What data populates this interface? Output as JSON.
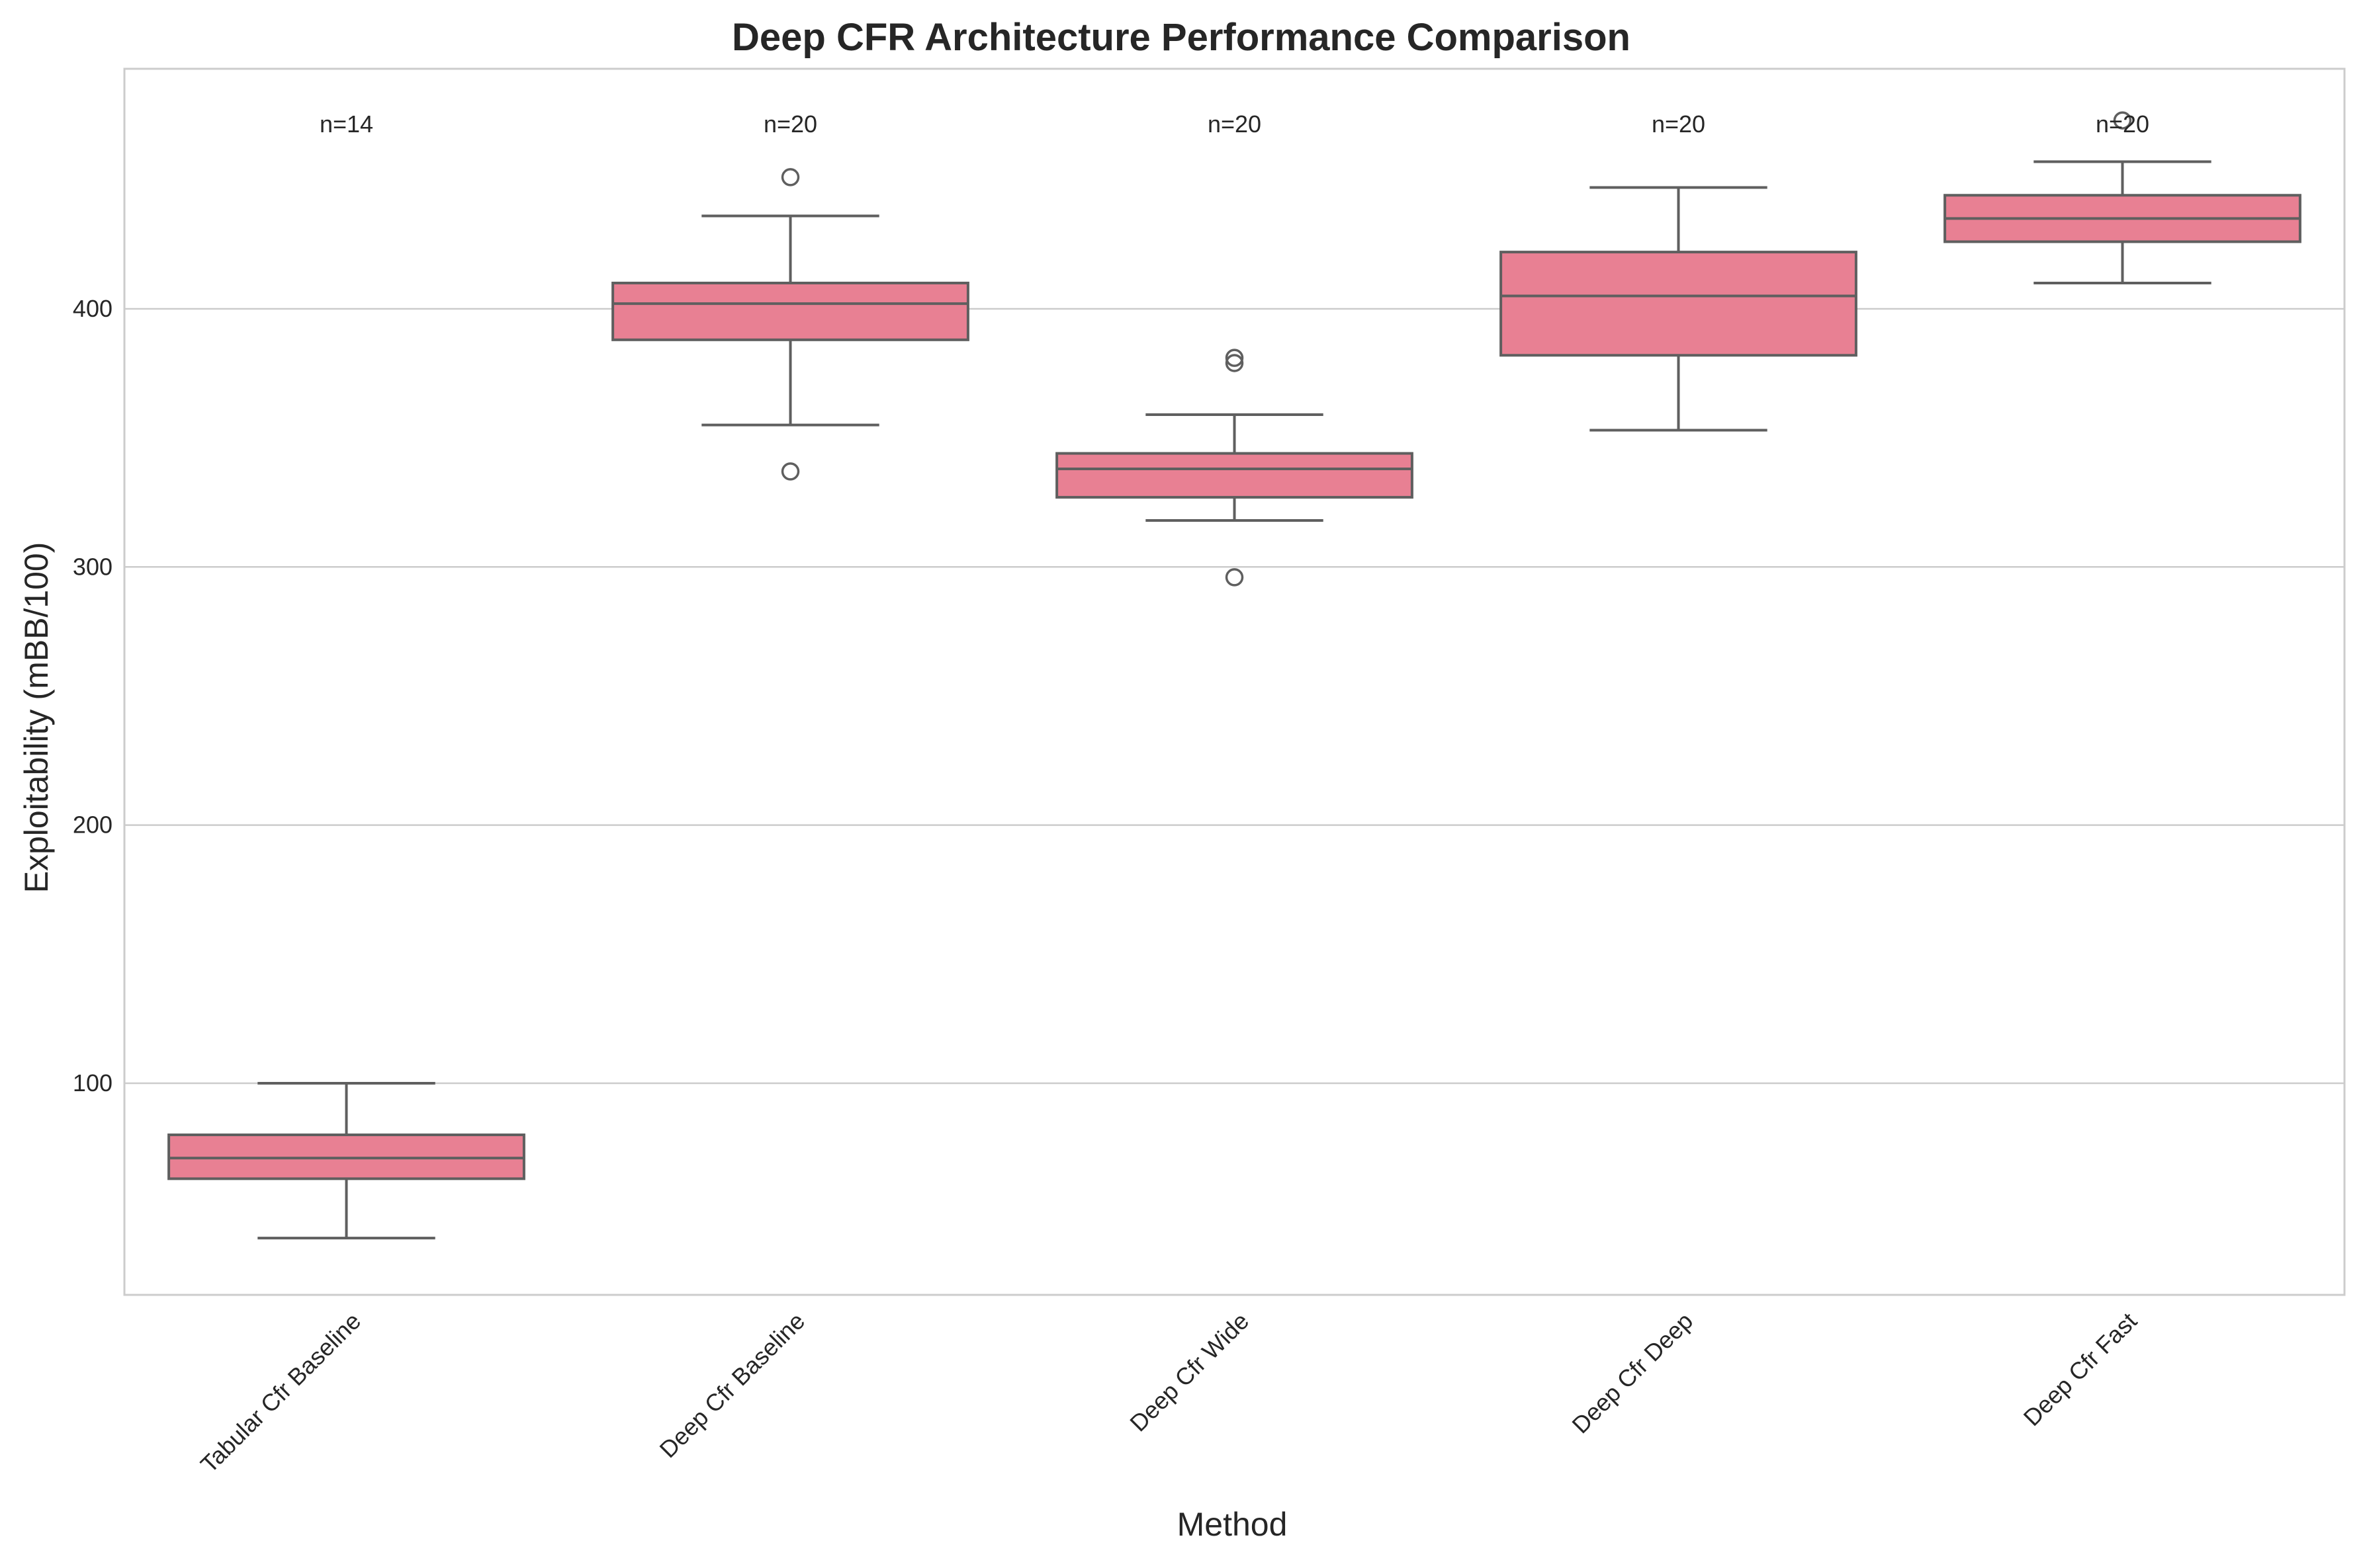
{
  "chart_data": {
    "type": "box",
    "title": "Deep CFR Architecture Performance Comparison",
    "xlabel": "Method",
    "ylabel": "Exploitability (mBB/100)",
    "ylim": [
      18,
      493
    ],
    "yticks": [
      100,
      200,
      300,
      400
    ],
    "grid": "horizontal",
    "box_color": "#e88093",
    "line_color": "#5f5f5f",
    "grid_color": "#cccccc",
    "categories": [
      "Tabular Cfr Baseline",
      "Deep Cfr Baseline",
      "Deep Cfr Wide",
      "Deep Cfr Deep",
      "Deep Cfr Fast"
    ],
    "boxes": [
      {
        "label": "Tabular Cfr Baseline",
        "count": "n=14",
        "whisker_low": 40,
        "q1": 63,
        "median": 71,
        "q3": 80,
        "whisker_high": 100,
        "outliers": []
      },
      {
        "label": "Deep Cfr Baseline",
        "count": "n=20",
        "whisker_low": 355,
        "q1": 388,
        "median": 402,
        "q3": 410,
        "whisker_high": 436,
        "outliers": [
          337,
          451
        ]
      },
      {
        "label": "Deep Cfr Wide",
        "count": "n=20",
        "whisker_low": 318,
        "q1": 327,
        "median": 338,
        "q3": 344,
        "whisker_high": 359,
        "outliers": [
          296,
          379,
          381
        ]
      },
      {
        "label": "Deep Cfr Deep",
        "count": "n=20",
        "whisker_low": 353,
        "q1": 382,
        "median": 405,
        "q3": 422,
        "whisker_high": 447,
        "outliers": []
      },
      {
        "label": "Deep Cfr Fast",
        "count": "n=20",
        "whisker_low": 410,
        "q1": 426,
        "median": 435,
        "q3": 444,
        "whisker_high": 457,
        "outliers": [
          473
        ]
      }
    ]
  }
}
